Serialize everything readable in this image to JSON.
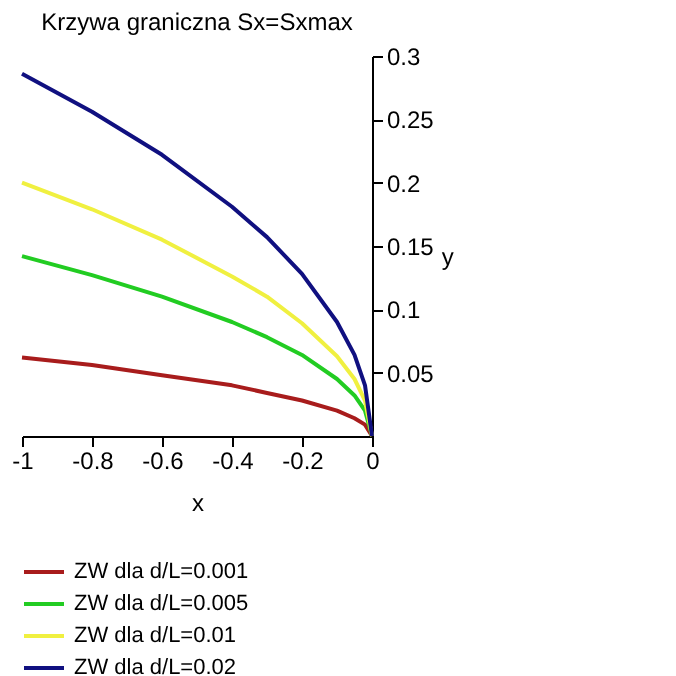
{
  "chart_data": {
    "type": "line",
    "title": "Krzywa graniczna Sx=Sxmax",
    "xlabel": "x",
    "ylabel": "y",
    "x": [
      -1,
      -0.8,
      -0.6,
      -0.4,
      -0.3,
      -0.2,
      -0.1,
      -0.05,
      -0.02,
      0
    ],
    "series": [
      {
        "name": "ZW dla d/L=0.001",
        "color": "#a81c1c",
        "values": [
          0.062,
          0.056,
          0.048,
          0.04,
          0.034,
          0.028,
          0.02,
          0.014,
          0.009,
          0
        ]
      },
      {
        "name": "ZW dla d/L=0.005",
        "color": "#22cc22",
        "values": [
          0.142,
          0.127,
          0.11,
          0.09,
          0.078,
          0.064,
          0.045,
          0.032,
          0.02,
          0
        ]
      },
      {
        "name": "ZW dla d/L=0.01",
        "color": "#f0f040",
        "values": [
          0.2,
          0.179,
          0.155,
          0.126,
          0.11,
          0.089,
          0.063,
          0.045,
          0.028,
          0
        ]
      },
      {
        "name": "ZW dla d/L=0.02",
        "color": "#101080",
        "values": [
          0.286,
          0.256,
          0.222,
          0.181,
          0.157,
          0.128,
          0.09,
          0.064,
          0.04,
          0
        ]
      }
    ],
    "xlim": [
      -1,
      0
    ],
    "xticks": [
      -1,
      -0.8,
      -0.6,
      -0.4,
      -0.2,
      0
    ],
    "ylim": [
      0,
      0.3
    ],
    "yticks": [
      0.05,
      0.1,
      0.15,
      0.2,
      0.25,
      0.3
    ],
    "grid": false,
    "legend": "bottom",
    "marker": "none",
    "line_style": "solid"
  }
}
